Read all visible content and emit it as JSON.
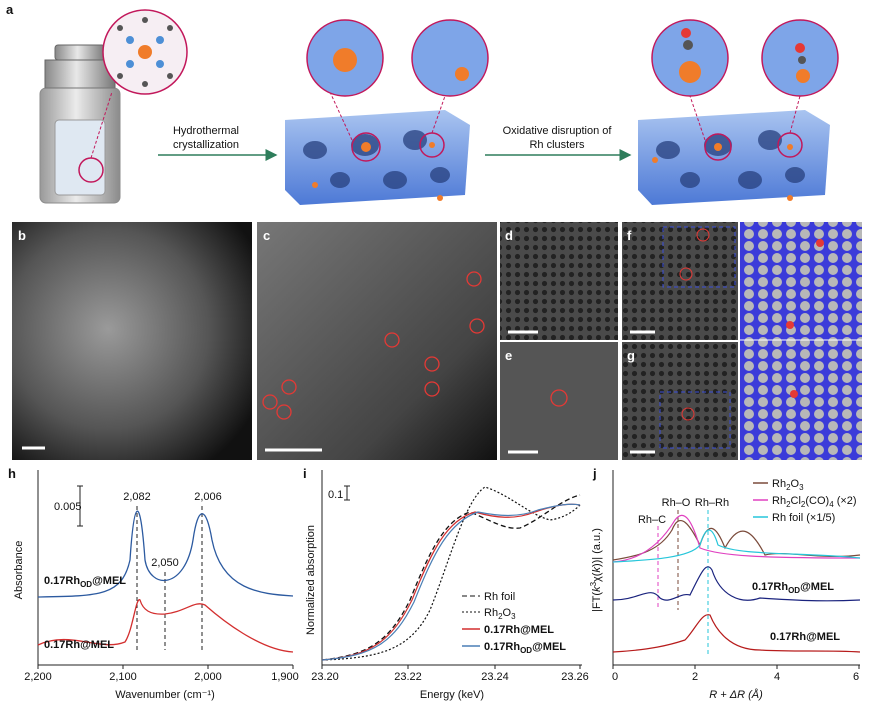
{
  "panel_a": {
    "label": "a",
    "step1": [
      "Hydrothermal",
      "crystallization"
    ],
    "step2": [
      "Oxidative disruption of",
      "Rh clusters"
    ]
  },
  "image_labels": [
    "b",
    "c",
    "d",
    "e",
    "f",
    "g"
  ],
  "panel_h": {
    "label": "h",
    "scale": "0.005",
    "peaks": [
      "2,082",
      "2,006",
      "2,050"
    ],
    "sample_od": {
      "main": "0.17Rh",
      "sub": "OD",
      "tail": "@MEL"
    },
    "sample": "0.17Rh@MEL",
    "y_label": "Absorbance",
    "x_ticks": [
      "2,200",
      "2,100",
      "2,000",
      "1,900"
    ],
    "x_label": "Wavenumber (cm⁻¹)"
  },
  "panel_i": {
    "label": "i",
    "scale": "0.1",
    "y_label": "Normalized absorption",
    "x_ticks": [
      "23.20",
      "23.22",
      "23.24",
      "23.26"
    ],
    "x_label": "Energy (keV)",
    "legend": {
      "foil": "Rh foil",
      "oxide": {
        "main": "Rh",
        "sub1": "2",
        "mid": "O",
        "sub2": "3"
      },
      "sample": "0.17Rh@MEL",
      "sample_od": {
        "main": "0.17Rh",
        "sub": "OD",
        "tail": "@MEL"
      }
    }
  },
  "panel_j": {
    "label": "j",
    "legend": {
      "oxide": {
        "main": "Rh",
        "sub1": "2",
        "mid": "O",
        "sub2": "3"
      },
      "chloride": {
        "a": "Rh",
        "s1": "2",
        "b": "Cl",
        "s2": "2",
        "c": "(CO)",
        "s3": "4",
        "d": " (×2)"
      },
      "foil": "Rh foil (×1/5)"
    },
    "bonds": [
      "Rh–C",
      "Rh–O",
      "Rh–Rh"
    ],
    "sample_od": {
      "main": "0.17Rh",
      "sub": "OD",
      "tail": "@MEL"
    },
    "sample": "0.17Rh@MEL",
    "y_label": {
      "a": "|FT(",
      "b": "k",
      "c": "3",
      "d": "χ(",
      "e": "k",
      "f": "))| (a.u.)"
    },
    "x_ticks": [
      "0",
      "2",
      "4",
      "6"
    ],
    "x_label": "R + ΔR (Å)"
  }
}
